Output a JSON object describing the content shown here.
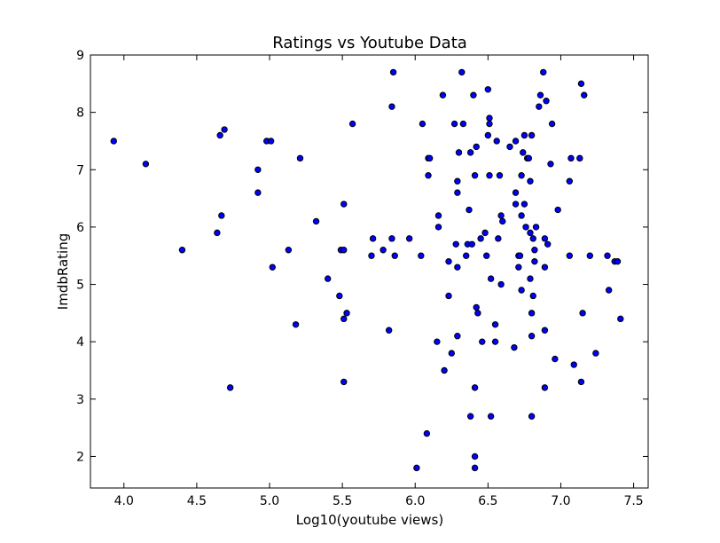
{
  "chart_data": {
    "type": "scatter",
    "title": "Ratings vs Youtube Data",
    "xlabel": "Log10(youtube views)",
    "ylabel": "ImdbRating",
    "xlim": [
      3.77,
      7.6
    ],
    "ylim": [
      1.45,
      9.0
    ],
    "xticks": [
      "4.0",
      "4.5",
      "5.0",
      "5.5",
      "6.0",
      "6.5",
      "7.0",
      "7.5"
    ],
    "yticks": [
      "2",
      "3",
      "4",
      "5",
      "6",
      "7",
      "8",
      "9"
    ],
    "grid": false,
    "point_color": "#0000ff",
    "series": [
      {
        "points": [
          [
            3.93,
            7.5
          ],
          [
            4.15,
            7.1
          ],
          [
            4.4,
            5.6
          ],
          [
            4.64,
            5.9
          ],
          [
            4.66,
            7.6
          ],
          [
            4.67,
            6.2
          ],
          [
            4.69,
            7.7
          ],
          [
            4.73,
            3.2
          ],
          [
            4.92,
            7.0
          ],
          [
            4.92,
            6.6
          ],
          [
            4.98,
            7.5
          ],
          [
            5.01,
            7.5
          ],
          [
            5.02,
            5.3
          ],
          [
            5.13,
            5.6
          ],
          [
            5.18,
            4.3
          ],
          [
            5.21,
            7.2
          ],
          [
            5.32,
            6.1
          ],
          [
            5.4,
            5.1
          ],
          [
            5.48,
            4.8
          ],
          [
            5.49,
            5.6
          ],
          [
            5.51,
            5.6
          ],
          [
            5.51,
            4.4
          ],
          [
            5.51,
            3.3
          ],
          [
            5.51,
            6.4
          ],
          [
            5.53,
            4.5
          ],
          [
            5.57,
            7.8
          ],
          [
            5.7,
            5.5
          ],
          [
            5.71,
            5.8
          ],
          [
            5.78,
            5.6
          ],
          [
            5.82,
            4.2
          ],
          [
            5.84,
            5.8
          ],
          [
            5.84,
            8.1
          ],
          [
            5.85,
            8.7
          ],
          [
            5.86,
            5.5
          ],
          [
            5.96,
            5.8
          ],
          [
            6.01,
            1.8
          ],
          [
            6.04,
            5.5
          ],
          [
            6.05,
            7.8
          ],
          [
            6.08,
            2.4
          ],
          [
            6.09,
            7.2
          ],
          [
            6.1,
            7.2
          ],
          [
            6.09,
            6.9
          ],
          [
            6.15,
            4.0
          ],
          [
            6.16,
            6.2
          ],
          [
            6.16,
            6.0
          ],
          [
            6.19,
            8.3
          ],
          [
            6.2,
            3.5
          ],
          [
            6.23,
            5.4
          ],
          [
            6.23,
            4.8
          ],
          [
            6.25,
            3.8
          ],
          [
            6.27,
            7.8
          ],
          [
            6.28,
            5.7
          ],
          [
            6.29,
            5.3
          ],
          [
            6.29,
            6.6
          ],
          [
            6.29,
            6.8
          ],
          [
            6.29,
            4.1
          ],
          [
            6.3,
            7.3
          ],
          [
            6.32,
            8.7
          ],
          [
            6.33,
            7.8
          ],
          [
            6.35,
            5.5
          ],
          [
            6.36,
            5.7
          ],
          [
            6.37,
            6.3
          ],
          [
            6.38,
            7.3
          ],
          [
            6.38,
            2.7
          ],
          [
            6.39,
            5.7
          ],
          [
            6.4,
            8.3
          ],
          [
            6.41,
            6.9
          ],
          [
            6.41,
            3.2
          ],
          [
            6.41,
            2.0
          ],
          [
            6.41,
            1.8
          ],
          [
            6.42,
            7.4
          ],
          [
            6.42,
            4.6
          ],
          [
            6.43,
            4.5
          ],
          [
            6.45,
            5.8
          ],
          [
            6.46,
            4.0
          ],
          [
            6.48,
            5.9
          ],
          [
            6.49,
            5.5
          ],
          [
            6.5,
            7.6
          ],
          [
            6.5,
            8.4
          ],
          [
            6.51,
            7.9
          ],
          [
            6.51,
            7.8
          ],
          [
            6.51,
            6.9
          ],
          [
            6.52,
            5.1
          ],
          [
            6.52,
            2.7
          ],
          [
            6.55,
            4.3
          ],
          [
            6.55,
            4.0
          ],
          [
            6.56,
            7.5
          ],
          [
            6.57,
            5.8
          ],
          [
            6.58,
            6.9
          ],
          [
            6.59,
            6.2
          ],
          [
            6.59,
            5.0
          ],
          [
            6.6,
            6.1
          ],
          [
            6.65,
            7.4
          ],
          [
            6.68,
            3.9
          ],
          [
            6.69,
            7.5
          ],
          [
            6.69,
            6.6
          ],
          [
            6.69,
            6.4
          ],
          [
            6.71,
            5.5
          ],
          [
            6.71,
            5.3
          ],
          [
            6.72,
            5.5
          ],
          [
            6.73,
            6.9
          ],
          [
            6.73,
            6.2
          ],
          [
            6.73,
            4.9
          ],
          [
            6.74,
            7.3
          ],
          [
            6.75,
            7.6
          ],
          [
            6.75,
            6.4
          ],
          [
            6.76,
            6.0
          ],
          [
            6.77,
            7.2
          ],
          [
            6.78,
            7.2
          ],
          [
            6.79,
            5.9
          ],
          [
            6.79,
            5.1
          ],
          [
            6.8,
            7.6
          ],
          [
            6.79,
            6.8
          ],
          [
            6.8,
            4.5
          ],
          [
            6.8,
            4.1
          ],
          [
            6.8,
            2.7
          ],
          [
            6.81,
            5.8
          ],
          [
            6.81,
            4.8
          ],
          [
            6.82,
            5.6
          ],
          [
            6.82,
            5.4
          ],
          [
            6.83,
            6.0
          ],
          [
            6.85,
            8.1
          ],
          [
            6.86,
            8.3
          ],
          [
            6.88,
            8.7
          ],
          [
            6.89,
            5.8
          ],
          [
            6.89,
            5.3
          ],
          [
            6.89,
            4.2
          ],
          [
            6.89,
            3.2
          ],
          [
            6.9,
            8.2
          ],
          [
            6.91,
            5.7
          ],
          [
            6.93,
            7.1
          ],
          [
            6.94,
            7.8
          ],
          [
            6.96,
            3.7
          ],
          [
            6.98,
            6.3
          ],
          [
            7.06,
            5.5
          ],
          [
            7.06,
            6.8
          ],
          [
            7.07,
            7.2
          ],
          [
            7.09,
            3.6
          ],
          [
            7.13,
            7.2
          ],
          [
            7.14,
            3.3
          ],
          [
            7.14,
            8.5
          ],
          [
            7.15,
            4.5
          ],
          [
            7.16,
            8.3
          ],
          [
            7.2,
            5.5
          ],
          [
            7.24,
            3.8
          ],
          [
            7.32,
            5.5
          ],
          [
            7.33,
            4.9
          ],
          [
            7.37,
            5.4
          ],
          [
            7.39,
            5.4
          ],
          [
            7.41,
            4.4
          ]
        ]
      }
    ]
  }
}
